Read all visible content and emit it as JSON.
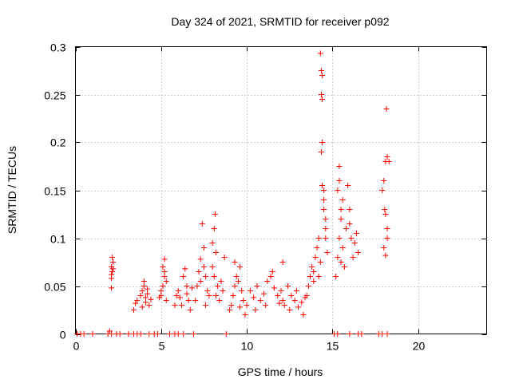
{
  "chart_data": {
    "type": "scatter",
    "title": "Day 324 of 2021, SRMTID for receiver p092",
    "xlabel": "GPS time / hours",
    "ylabel": "SRMTID / TECUs",
    "xlim": [
      0,
      24
    ],
    "ylim": [
      0,
      0.3
    ],
    "x_ticks": [
      0,
      5,
      10,
      15,
      20
    ],
    "x_tick_labels": [
      "0",
      "5",
      "10",
      "15",
      "20"
    ],
    "y_ticks": [
      0,
      0.05,
      0.1,
      0.15,
      0.2,
      0.25,
      0.3
    ],
    "y_tick_labels": [
      "0",
      "0.05",
      "0.1",
      "0.15",
      "0.2",
      "0.25",
      "0.3"
    ],
    "grid": true,
    "marker": "plus",
    "color": "#ff0000",
    "series": [
      {
        "name": "SRMTID",
        "points": [
          [
            0.1,
            0
          ],
          [
            0.3,
            0
          ],
          [
            0.5,
            0
          ],
          [
            1.0,
            0
          ],
          [
            1.9,
            0
          ],
          [
            2.1,
            0
          ],
          [
            2.4,
            0
          ],
          [
            2.6,
            0
          ],
          [
            3.1,
            0
          ],
          [
            3.4,
            0
          ],
          [
            3.6,
            0
          ],
          [
            3.8,
            0
          ],
          [
            4.3,
            0
          ],
          [
            4.6,
            0
          ],
          [
            4.8,
            0
          ],
          [
            5.5,
            0
          ],
          [
            5.8,
            0
          ],
          [
            6.0,
            0
          ],
          [
            6.3,
            0
          ],
          [
            6.9,
            0
          ],
          [
            8.8,
            0
          ],
          [
            15.1,
            0
          ],
          [
            15.3,
            0
          ],
          [
            16.0,
            0
          ],
          [
            16.5,
            0
          ],
          [
            16.7,
            0
          ],
          [
            17.7,
            0
          ],
          [
            17.9,
            0
          ],
          [
            18.2,
            0
          ],
          [
            2.0,
            0.003
          ],
          [
            2.1,
            0.048
          ],
          [
            2.1,
            0.058
          ],
          [
            2.15,
            0.065
          ],
          [
            2.1,
            0.07
          ],
          [
            2.2,
            0.075
          ],
          [
            2.15,
            0.08
          ],
          [
            2.2,
            0.068
          ],
          [
            2.1,
            0.062
          ],
          [
            3.4,
            0.025
          ],
          [
            3.5,
            0.032
          ],
          [
            3.6,
            0.035
          ],
          [
            3.8,
            0.04
          ],
          [
            3.9,
            0.045
          ],
          [
            4.0,
            0.05
          ],
          [
            4.1,
            0.038
          ],
          [
            4.2,
            0.042
          ],
          [
            4.3,
            0.03
          ],
          [
            4.4,
            0.036
          ],
          [
            3.9,
            0.028
          ],
          [
            4.0,
            0.055
          ],
          [
            4.2,
            0.047
          ],
          [
            4.1,
            0.033
          ],
          [
            5.0,
            0.04
          ],
          [
            5.1,
            0.05
          ],
          [
            5.2,
            0.06
          ],
          [
            5.1,
            0.07
          ],
          [
            5.2,
            0.078
          ],
          [
            5.3,
            0.035
          ],
          [
            5.0,
            0.045
          ],
          [
            5.3,
            0.055
          ],
          [
            4.9,
            0.038
          ],
          [
            5.2,
            0.065
          ],
          [
            5.8,
            0.03
          ],
          [
            5.9,
            0.04
          ],
          [
            6.0,
            0.045
          ],
          [
            6.1,
            0.038
          ],
          [
            6.3,
            0.06
          ],
          [
            6.4,
            0.068
          ],
          [
            6.5,
            0.05
          ],
          [
            6.6,
            0.035
          ],
          [
            6.7,
            0.025
          ],
          [
            6.5,
            0.042
          ],
          [
            6.2,
            0.03
          ],
          [
            6.8,
            0.048
          ],
          [
            7.0,
            0.035
          ],
          [
            7.1,
            0.05
          ],
          [
            7.2,
            0.065
          ],
          [
            7.3,
            0.078
          ],
          [
            7.4,
            0.115
          ],
          [
            7.5,
            0.09
          ],
          [
            7.6,
            0.06
          ],
          [
            7.7,
            0.045
          ],
          [
            7.8,
            0.04
          ],
          [
            7.5,
            0.07
          ],
          [
            7.3,
            0.055
          ],
          [
            7.6,
            0.03
          ],
          [
            8.0,
            0.095
          ],
          [
            8.1,
            0.11
          ],
          [
            8.15,
            0.125
          ],
          [
            8.2,
            0.085
          ],
          [
            8.0,
            0.07
          ],
          [
            8.1,
            0.06
          ],
          [
            8.3,
            0.05
          ],
          [
            8.2,
            0.04
          ],
          [
            8.4,
            0.035
          ],
          [
            8.6,
            0.045
          ],
          [
            8.7,
            0.08
          ],
          [
            8.5,
            0.055
          ],
          [
            9.0,
            0.025
          ],
          [
            9.1,
            0.03
          ],
          [
            9.2,
            0.04
          ],
          [
            9.3,
            0.05
          ],
          [
            9.4,
            0.06
          ],
          [
            9.5,
            0.055
          ],
          [
            9.6,
            0.07
          ],
          [
            9.7,
            0.045
          ],
          [
            9.8,
            0.035
          ],
          [
            9.9,
            0.02
          ],
          [
            9.3,
            0.075
          ],
          [
            9.6,
            0.028
          ],
          [
            10.0,
            0.03
          ],
          [
            10.2,
            0.045
          ],
          [
            10.4,
            0.038
          ],
          [
            10.6,
            0.05
          ],
          [
            10.8,
            0.035
          ],
          [
            11.0,
            0.042
          ],
          [
            11.2,
            0.055
          ],
          [
            11.4,
            0.06
          ],
          [
            11.6,
            0.048
          ],
          [
            11.8,
            0.04
          ],
          [
            10.5,
            0.025
          ],
          [
            11.1,
            0.03
          ],
          [
            11.5,
            0.065
          ],
          [
            11.9,
            0.032
          ],
          [
            12.0,
            0.045
          ],
          [
            12.1,
            0.035
          ],
          [
            12.2,
            0.03
          ],
          [
            12.4,
            0.05
          ],
          [
            12.6,
            0.04
          ],
          [
            12.8,
            0.035
          ],
          [
            13.0,
            0.028
          ],
          [
            13.2,
            0.033
          ],
          [
            13.4,
            0.038
          ],
          [
            12.5,
            0.025
          ],
          [
            12.9,
            0.045
          ],
          [
            13.3,
            0.02
          ],
          [
            12.1,
            0.075
          ],
          [
            13.5,
            0.04
          ],
          [
            13.6,
            0.05
          ],
          [
            13.7,
            0.06
          ],
          [
            13.8,
            0.07
          ],
          [
            13.9,
            0.065
          ],
          [
            14.0,
            0.08
          ],
          [
            14.1,
            0.09
          ],
          [
            14.2,
            0.1
          ],
          [
            14.3,
            0.075
          ],
          [
            13.9,
            0.055
          ],
          [
            14.2,
            0.06
          ],
          [
            14.3,
            0.293
          ],
          [
            14.35,
            0.275
          ],
          [
            14.4,
            0.27
          ],
          [
            14.35,
            0.25
          ],
          [
            14.4,
            0.245
          ],
          [
            14.4,
            0.2
          ],
          [
            14.35,
            0.19
          ],
          [
            14.4,
            0.155
          ],
          [
            14.5,
            0.15
          ],
          [
            14.5,
            0.14
          ],
          [
            14.6,
            0.12
          ],
          [
            14.6,
            0.1
          ],
          [
            14.7,
            0.085
          ],
          [
            14.5,
            0.13
          ],
          [
            14.6,
            0.11
          ],
          [
            15.2,
            0.06
          ],
          [
            15.3,
            0.08
          ],
          [
            15.4,
            0.1
          ],
          [
            15.5,
            0.12
          ],
          [
            15.6,
            0.14
          ],
          [
            15.3,
            0.15
          ],
          [
            15.4,
            0.16
          ],
          [
            15.4,
            0.175
          ],
          [
            15.5,
            0.13
          ],
          [
            15.6,
            0.09
          ],
          [
            15.7,
            0.07
          ],
          [
            15.8,
            0.11
          ],
          [
            15.9,
            0.155
          ],
          [
            16.0,
            0.13
          ],
          [
            16.1,
            0.1
          ],
          [
            16.2,
            0.08
          ],
          [
            16.3,
            0.095
          ],
          [
            16.4,
            0.105
          ],
          [
            16.5,
            0.085
          ],
          [
            15.5,
            0.075
          ],
          [
            16.0,
            0.115
          ],
          [
            17.9,
            0.15
          ],
          [
            18.0,
            0.16
          ],
          [
            18.1,
            0.18
          ],
          [
            18.2,
            0.185
          ],
          [
            18.05,
            0.13
          ],
          [
            18.1,
            0.125
          ],
          [
            18.2,
            0.11
          ],
          [
            18.0,
            0.09
          ],
          [
            18.1,
            0.082
          ],
          [
            18.15,
            0.235
          ],
          [
            18.2,
            0.1
          ],
          [
            18.3,
            0.18
          ]
        ]
      }
    ]
  }
}
